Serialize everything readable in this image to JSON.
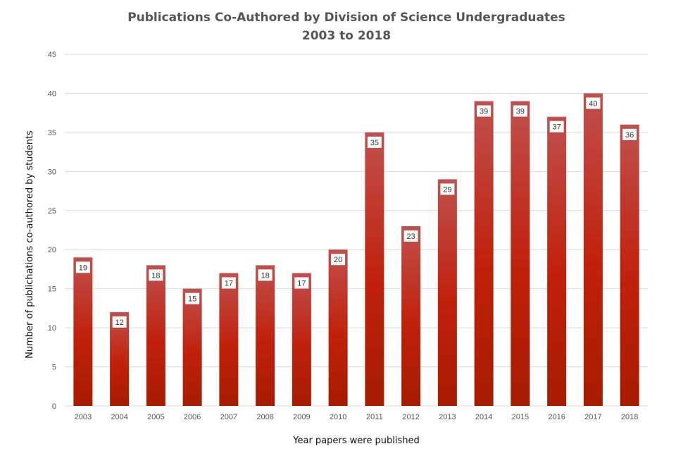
{
  "chart_data": {
    "type": "bar",
    "title_lines": [
      "Publications  Co-Authored  by Division  of Science Undergraduates",
      "2003 to 2018"
    ],
    "xlabel": "Year papers were published",
    "ylabel": "Number  of publichations co-authored by students",
    "categories": [
      "2003",
      "2004",
      "2005",
      "2006",
      "2007",
      "2008",
      "2009",
      "2010",
      "2011",
      "2012",
      "2013",
      "2014",
      "2015",
      "2016",
      "2017",
      "2018"
    ],
    "values": [
      19,
      12,
      18,
      15,
      17,
      18,
      17,
      20,
      35,
      23,
      29,
      39,
      39,
      37,
      40,
      36
    ],
    "ylim": [
      0,
      45
    ],
    "yticks": [
      "0",
      "5",
      "10",
      "15",
      "20",
      "25",
      "30",
      "35",
      "40",
      "45"
    ],
    "grid": true,
    "legend": "none",
    "data_labels": true,
    "colors": {
      "bar_top": "#c0504d",
      "bar_bottom": "#a61c00",
      "bar_mid": "#c0200a",
      "grid": "#d9d9d9",
      "label_box": "#ffffff"
    }
  }
}
